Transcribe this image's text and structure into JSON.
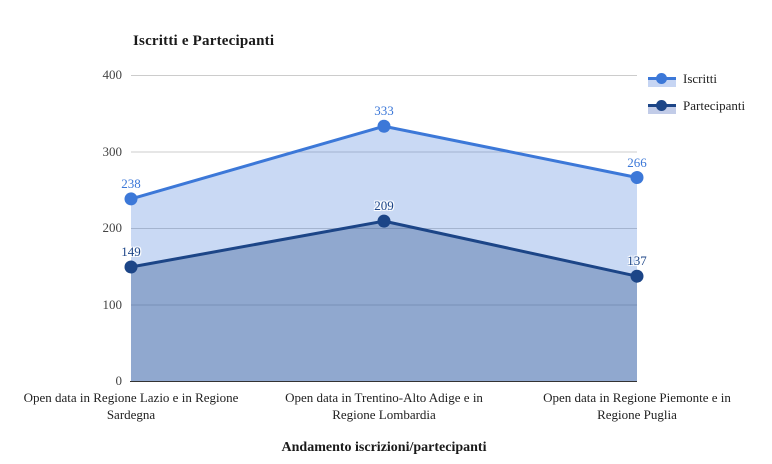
{
  "chart_data": {
    "type": "area",
    "title": "Iscritti e Partecipanti",
    "xlabel": "Andamento iscrizioni/partecipanti",
    "ylabel": "",
    "categories": [
      [
        "Open data in Regione Lazio e in Regione",
        "Sardegna"
      ],
      [
        "Open data in Trentino-Alto Adige e in",
        "Regione Lombardia"
      ],
      [
        "Open data in Regione Piemonte e in",
        "Regione Puglia"
      ]
    ],
    "series": [
      {
        "name": "Iscritti",
        "values": [
          238,
          333,
          266
        ],
        "line_color": "#3C78D8",
        "area_fill": "rgba(60,120,215,0.28)",
        "label_color": "#3C78D8",
        "legend_area_color": "#C6D5F3"
      },
      {
        "name": "Partecipanti",
        "values": [
          149,
          209,
          137
        ],
        "line_color": "#1C4587",
        "area_fill": "rgba(28,69,135,0.33)",
        "label_color": "#1C4587",
        "legend_area_color": "#C2CCE8"
      }
    ],
    "ylim": [
      0,
      400
    ],
    "yticks": [
      0,
      100,
      200,
      300,
      400
    ],
    "grid": true,
    "gridline_color": "#CCCCCC",
    "baseline_color": "#333333",
    "legend_position": "top-right",
    "point_labels_visible": true
  }
}
